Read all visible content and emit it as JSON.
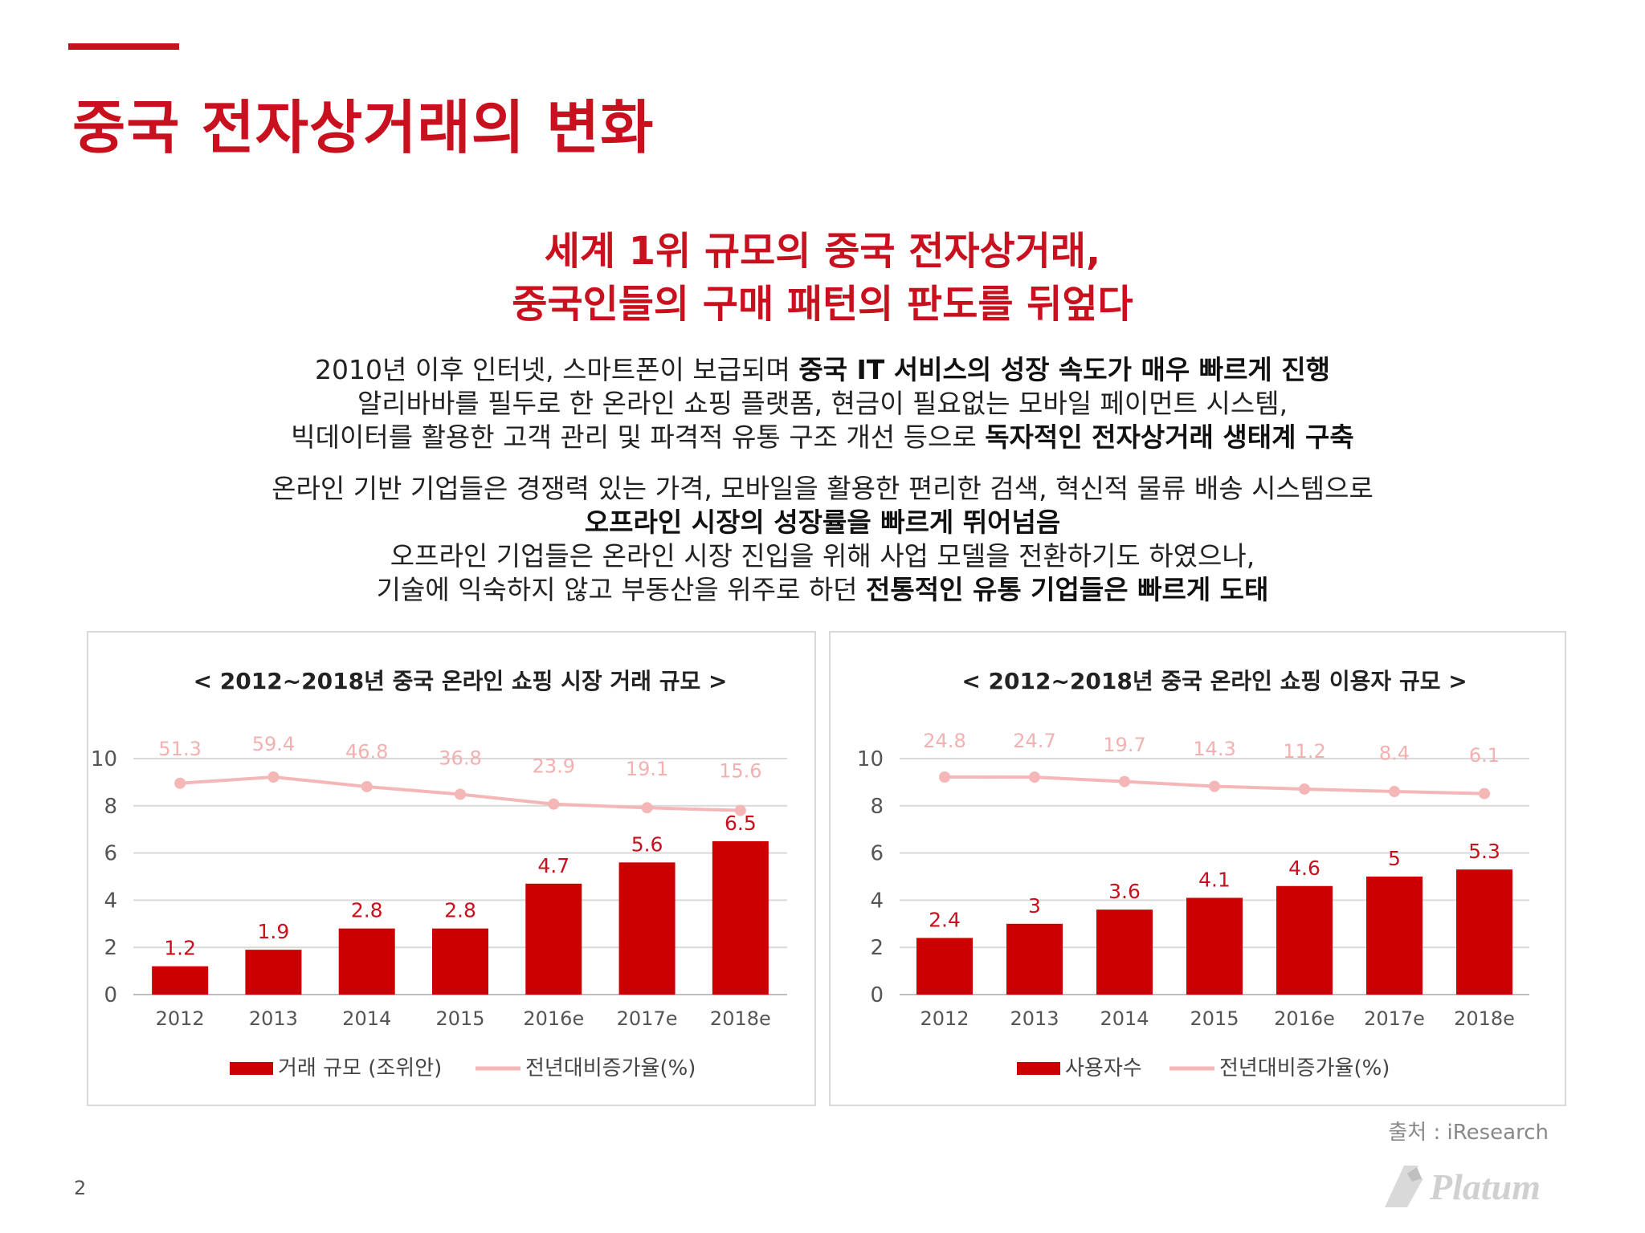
{
  "title": "중국 전자상거래의 변화",
  "headline": {
    "line1": "세계 1위 규모의 중국 전자상거래,",
    "line2": "중국인들의 구매 패턴의 판도를 뒤엎다"
  },
  "body": {
    "l1_normal": "2010년 이후 인터넷, 스마트폰이 보급되며 ",
    "l1_bold": "중국 IT 서비스의 성장 속도가 매우 빠르게 진행",
    "l2_normal": "알리바바를 필두로 한 온라인 쇼핑 플랫폼, 현금이 필요없는 모바일 페이먼트 시스템,",
    "l3_normal": "빅데이터를 활용한 고객 관리 및 파격적 유통 구조 개선 등으로 ",
    "l3_bold": "독자적인 전자상거래 생태계 구축",
    "l4_normal": "온라인 기반 기업들은 경쟁력 있는 가격, 모바일을 활용한 편리한 검색, 혁신적 물류 배송 시스템으로",
    "l5_bold": "오프라인 시장의 성장률을 빠르게 뛰어넘음",
    "l6_normal": "오프라인 기업들은 온라인 시장 진입을 위해 사업 모델을 전환하기도 하였으나,",
    "l7_normal": "기술에 익숙하지 않고 부동산을 위주로 하던 ",
    "l7_bold": "전통적인 유통 기업들은 빠르게 도태"
  },
  "source": "출처 : iResearch",
  "page_number": "2",
  "logo_text": "Platum",
  "colors": {
    "accent": "#c8101e",
    "bar": "#cc0000",
    "line": "#f4b6b6",
    "line_label": "#f3b0b0"
  },
  "chart_data": [
    {
      "type": "bar",
      "title": "< 2012~2018년 중국 온라인 쇼핑 시장 거래 규모 >",
      "categories": [
        "2012",
        "2013",
        "2014",
        "2015",
        "2016e",
        "2017e",
        "2018e"
      ],
      "yticks": [
        "0",
        "2",
        "4",
        "6",
        "8",
        "10"
      ],
      "ylim": [
        0,
        10
      ],
      "bar_series": {
        "name": "거래 규모 (조위안)",
        "values": [
          1.2,
          1.9,
          2.8,
          2.8,
          4.7,
          5.6,
          6.5
        ]
      },
      "line_series": {
        "name": "전년대비증가율(%)",
        "values": [
          51.3,
          59.4,
          46.8,
          36.8,
          23.9,
          19.1,
          15.6
        ]
      },
      "legend": "bottom",
      "grid": true
    },
    {
      "type": "bar",
      "title": "< 2012~2018년 중국 온라인 쇼핑 이용자 규모 >",
      "categories": [
        "2012",
        "2013",
        "2014",
        "2015",
        "2016e",
        "2017e",
        "2018e"
      ],
      "yticks": [
        "0",
        "2",
        "4",
        "6",
        "8",
        "10"
      ],
      "ylim": [
        0,
        10
      ],
      "bar_series": {
        "name": "사용자수",
        "values": [
          2.4,
          3,
          3.6,
          4.1,
          4.6,
          5,
          5.3
        ]
      },
      "line_series": {
        "name": "전년대비증가율(%)",
        "values": [
          24.8,
          24.7,
          19.7,
          14.3,
          11.2,
          8.4,
          6.1
        ]
      },
      "legend": "bottom",
      "grid": true
    }
  ]
}
